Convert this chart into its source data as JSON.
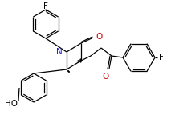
{
  "bg_color": "#ffffff",
  "line_color": "#000000",
  "atom_colors": {
    "N": "#2020cc",
    "O": "#cc0000",
    "F": "#000000",
    "HO": "#000000"
  },
  "figsize": [
    2.18,
    1.44
  ],
  "dpi": 100
}
